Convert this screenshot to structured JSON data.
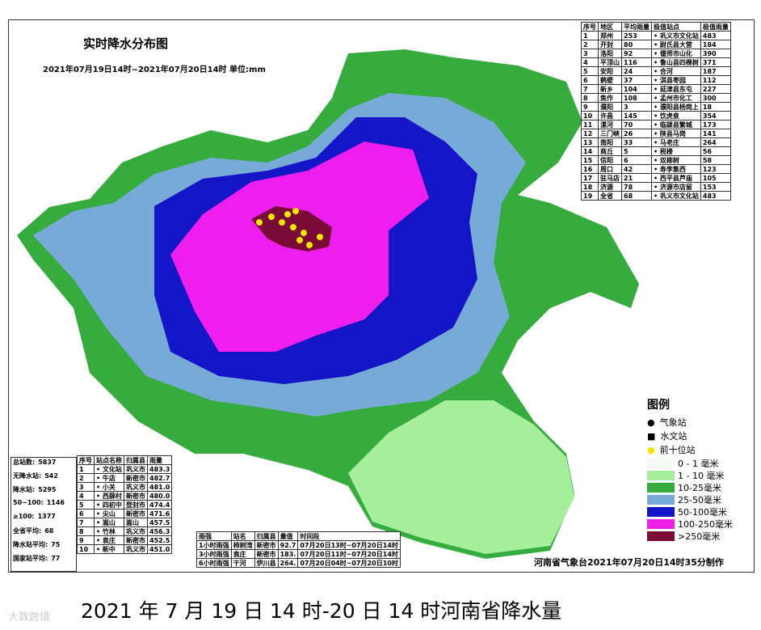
{
  "header": {
    "title": "实时降水分布图",
    "subtitle": "2021年07月19日14时~2021年07月20日14时 单位:mm"
  },
  "region_table": {
    "columns": [
      "序号",
      "地区",
      "平均雨量",
      "极值站点",
      "极值雨量"
    ],
    "rows": [
      [
        "1",
        "郑州",
        "253",
        "• 巩义市文化站",
        "483"
      ],
      [
        "2",
        "开封",
        "80",
        "• 尉氏县大营",
        "184"
      ],
      [
        "3",
        "洛阳",
        "92",
        "• 偃师市山化",
        "390"
      ],
      [
        "4",
        "平顶山",
        "116",
        "• 鲁山县四棵树",
        "371"
      ],
      [
        "5",
        "安阳",
        "24",
        "• 合河",
        "187"
      ],
      [
        "6",
        "鹤壁",
        "37",
        "• 淇县枣园",
        "112"
      ],
      [
        "7",
        "新乡",
        "104",
        "• 延津县东屯",
        "227"
      ],
      [
        "8",
        "焦作",
        "108",
        "• 孟州市化工",
        "300"
      ],
      [
        "9",
        "濮阳",
        "3",
        "• 濮阳县杨岗上",
        "18"
      ],
      [
        "10",
        "许昌",
        "145",
        "• 饮虎泉",
        "354"
      ],
      [
        "11",
        "漯河",
        "70",
        "• 临颍县繁城",
        "173"
      ],
      [
        "12",
        "三门峡",
        "26",
        "• 陕县马岗",
        "141"
      ],
      [
        "13",
        "南阳",
        "33",
        "• 马老庄",
        "264"
      ],
      [
        "14",
        "商丘",
        "5",
        "• 税楼",
        "56"
      ],
      [
        "15",
        "信阳",
        "6",
        "• 双柳树",
        "58"
      ],
      [
        "16",
        "周口",
        "42",
        "• 寿李集西",
        "123"
      ],
      [
        "17",
        "驻马店",
        "21",
        "• 西平县芦庙",
        "105"
      ],
      [
        "18",
        "济源",
        "78",
        "• 济源市店留",
        "153"
      ],
      [
        "19",
        "全省",
        "68",
        "• 巩义市文化站",
        "483"
      ]
    ]
  },
  "stats": [
    [
      "总站数:",
      "5837"
    ],
    [
      "无降水站:",
      "542"
    ],
    [
      "降水站:",
      "5295"
    ],
    [
      "50~100:",
      "1146"
    ],
    [
      "≥100:",
      "1377"
    ],
    [
      "全省平均:",
      "68"
    ],
    [
      "降水站平均:",
      "75"
    ],
    [
      "国家站平均:",
      "77"
    ]
  ],
  "top_table": {
    "columns": [
      "序号",
      "站点名称",
      "归属县",
      "雨量"
    ],
    "rows": [
      [
        "1",
        "• 文化站",
        "巩义市",
        "483.3"
      ],
      [
        "2",
        "• 牛店",
        "新密市",
        "482.7"
      ],
      [
        "3",
        "• 小关",
        "巩义市",
        "481.0"
      ],
      [
        "4",
        "• 西薛村",
        "新密市",
        "480.0"
      ],
      [
        "5",
        "• 四初中",
        "登封市",
        "474.4"
      ],
      [
        "6",
        "• 尖山",
        "新密市",
        "471.6"
      ],
      [
        "7",
        "• 嵩山",
        "嵩山",
        "457.5"
      ],
      [
        "8",
        "• 竹林",
        "巩义市",
        "456.3"
      ],
      [
        "9",
        "• 袁庄",
        "新密市",
        "452.5"
      ],
      [
        "10",
        "• 新中",
        "巩义市",
        "451.0"
      ]
    ]
  },
  "intensity_table": {
    "columns": [
      "雨强",
      "站名",
      "归属县",
      "量值",
      "时间段"
    ],
    "rows": [
      [
        "1小时雨强",
        "柿树湾",
        "新密市",
        "92.7",
        "07月20日13时~07月20日14时"
      ],
      [
        "3小时雨强",
        "袁庄",
        "新密市",
        "183.",
        "07月20日11时~07月20日14时"
      ],
      [
        "6小时雨强",
        "干河",
        "伊川县",
        "264.",
        "07月20日04时~07月20日10时"
      ]
    ]
  },
  "legend": {
    "title": "图例",
    "symbols": [
      "气象站",
      "水文站",
      "前十位站"
    ],
    "items": [
      {
        "label": "0 - 1 毫米",
        "color": "#f4fbf2"
      },
      {
        "label": "1 - 10 毫米",
        "color": "#a6ee9c"
      },
      {
        "label": "10-25毫米",
        "color": "#36ac3e"
      },
      {
        "label": "25-50毫米",
        "color": "#78aad8"
      },
      {
        "label": "50-100毫米",
        "color": "#1515c8"
      },
      {
        "label": "100-250毫米",
        "color": "#ee1fee"
      },
      {
        "label": ">250毫米",
        "color": "#7a0a36"
      }
    ]
  },
  "footer": "河南省气象台2021年07月20日14时35分制作",
  "caption": "2021 年 7 月 19 日 14 时-20 日 14 时河南省降水量",
  "watermark": "大数跨境"
}
